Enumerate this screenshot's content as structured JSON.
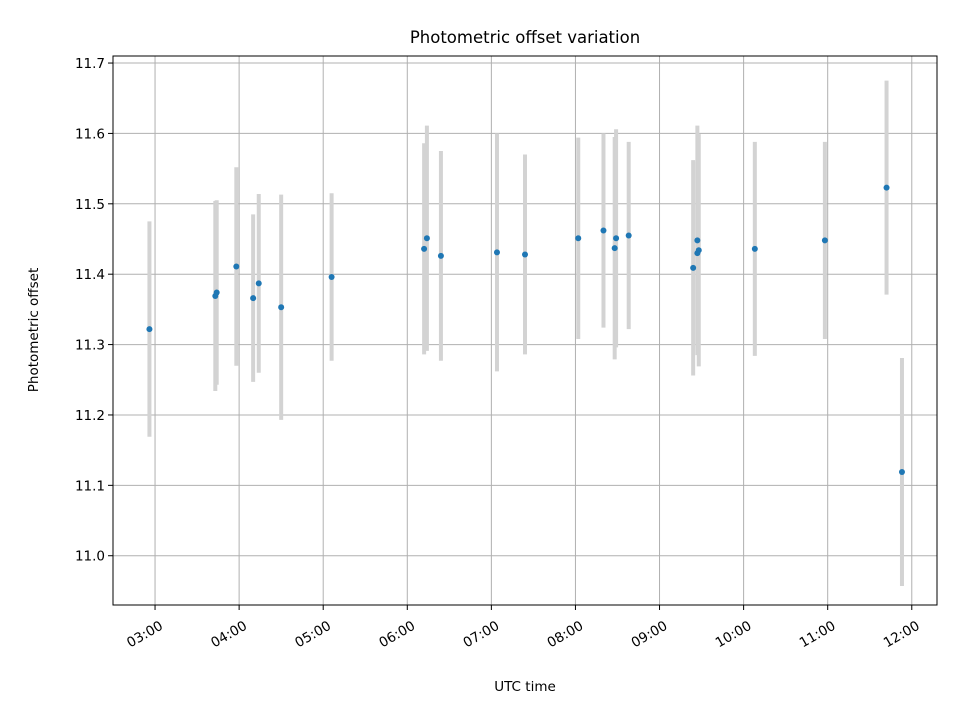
{
  "chart_data": {
    "type": "scatter",
    "title": "Photometric offset variation",
    "xlabel": "UTC time",
    "ylabel": "Photometric offset",
    "xlim": [
      "02:30",
      "12:18"
    ],
    "ylim": [
      10.93,
      11.71
    ],
    "x_ticks": [
      "03:00",
      "04:00",
      "05:00",
      "06:00",
      "07:00",
      "08:00",
      "09:00",
      "10:00",
      "11:00",
      "12:00"
    ],
    "y_ticks": [
      "11.0",
      "11.1",
      "11.2",
      "11.3",
      "11.4",
      "11.5",
      "11.6",
      "11.7"
    ],
    "grid": true,
    "point_color": "#1f77b4",
    "errorbar_color": "#d3d3d3",
    "points": [
      {
        "time": "02:56",
        "y": 11.322,
        "err": 0.153
      },
      {
        "time": "03:43",
        "y": 11.369,
        "err": 0.135
      },
      {
        "time": "03:44",
        "y": 11.374,
        "err": 0.131
      },
      {
        "time": "03:58",
        "y": 11.411,
        "err": 0.141
      },
      {
        "time": "04:10",
        "y": 11.366,
        "err": 0.119
      },
      {
        "time": "04:14",
        "y": 11.387,
        "err": 0.127
      },
      {
        "time": "04:30",
        "y": 11.353,
        "err": 0.16
      },
      {
        "time": "05:06",
        "y": 11.396,
        "err": 0.119
      },
      {
        "time": "06:12",
        "y": 11.436,
        "err": 0.15
      },
      {
        "time": "06:14",
        "y": 11.451,
        "err": 0.16
      },
      {
        "time": "06:24",
        "y": 11.426,
        "err": 0.149
      },
      {
        "time": "07:04",
        "y": 11.431,
        "err": 0.169
      },
      {
        "time": "07:24",
        "y": 11.428,
        "err": 0.142
      },
      {
        "time": "08:02",
        "y": 11.451,
        "err": 0.143
      },
      {
        "time": "08:20",
        "y": 11.462,
        "err": 0.138
      },
      {
        "time": "08:28",
        "y": 11.437,
        "err": 0.158
      },
      {
        "time": "08:29",
        "y": 11.451,
        "err": 0.155
      },
      {
        "time": "08:38",
        "y": 11.455,
        "err": 0.133
      },
      {
        "time": "09:24",
        "y": 11.409,
        "err": 0.153
      },
      {
        "time": "09:27",
        "y": 11.448,
        "err": 0.163
      },
      {
        "time": "09:27",
        "y": 11.43,
        "err": 0.13
      },
      {
        "time": "09:28",
        "y": 11.434,
        "err": 0.165
      },
      {
        "time": "10:08",
        "y": 11.436,
        "err": 0.152
      },
      {
        "time": "10:58",
        "y": 11.448,
        "err": 0.14
      },
      {
        "time": "11:42",
        "y": 11.523,
        "err": 0.152
      },
      {
        "time": "11:53",
        "y": 11.119,
        "err": 0.162
      }
    ]
  }
}
